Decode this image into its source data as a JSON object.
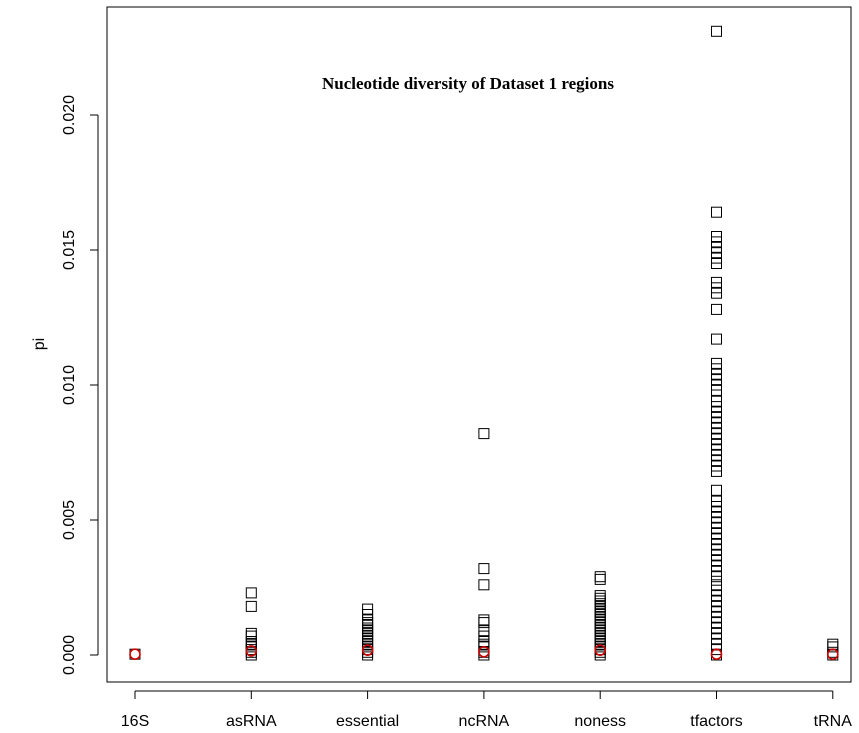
{
  "chart_data": {
    "type": "scatter",
    "title": "Nucleotide diversity of Dataset 1 regions",
    "ylabel": "pi",
    "xlabel": "",
    "categories": [
      "16S",
      "asRNA",
      "essential",
      "ncRNA",
      "noness",
      "tfactors",
      "tRNA"
    ],
    "ylim": [
      -0.0009,
      0.024
    ],
    "yticks": [
      0.0,
      0.005,
      0.01,
      0.015,
      0.02
    ],
    "ytick_labels": [
      "0.000",
      "0.005",
      "0.010",
      "0.015",
      "0.020"
    ],
    "grid": false,
    "series": [
      {
        "marker": "square",
        "color": "#000000",
        "points": {
          "16S": [
            3e-05
          ],
          "asRNA": [
            0.0023,
            0.0018,
            0.0008,
            0.0007,
            0.0005,
            0.0004,
            0.0003,
            0.0002,
            0.0001,
            0.0
          ],
          "essential": [
            0.0017,
            0.0015,
            0.0013,
            0.0012,
            0.0011,
            0.001,
            0.0009,
            0.0008,
            0.0007,
            0.0006,
            0.0005,
            0.0004,
            0.0003,
            0.0002,
            0.0001,
            0.0
          ],
          "ncRNA": [
            0.0082,
            0.0032,
            0.0026,
            0.0013,
            0.0012,
            0.0009,
            0.0007,
            0.0005,
            0.0004,
            0.0003,
            0.0001,
            0.0
          ],
          "noness": [
            0.0029,
            0.0028,
            0.0022,
            0.0021,
            0.002,
            0.0019,
            0.0018,
            0.0017,
            0.0016,
            0.0015,
            0.0014,
            0.0013,
            0.0012,
            0.0011,
            0.001,
            0.0009,
            0.0008,
            0.0007,
            0.0006,
            0.0005,
            0.0004,
            0.0003,
            0.0002,
            0.0001,
            0.0
          ],
          "tfactors": [
            0.0231,
            0.0164,
            0.0155,
            0.0153,
            0.0151,
            0.0149,
            0.0147,
            0.0145,
            0.0138,
            0.0136,
            0.0134,
            0.0128,
            0.0117,
            0.0108,
            0.0106,
            0.0104,
            0.0102,
            0.01,
            0.0098,
            0.0094,
            0.0092,
            0.009,
            0.0088,
            0.0086,
            0.0084,
            0.0082,
            0.008,
            0.0078,
            0.0076,
            0.0074,
            0.0072,
            0.007,
            0.0068,
            0.0061,
            0.0057,
            0.0055,
            0.0053,
            0.0051,
            0.0049,
            0.0047,
            0.0045,
            0.0043,
            0.0041,
            0.0039,
            0.0037,
            0.0035,
            0.0033,
            0.0031,
            0.0029,
            0.0026,
            0.0024,
            0.0022,
            0.002,
            0.0018,
            0.0016,
            0.0014,
            0.0012,
            0.001,
            0.0008,
            0.0006,
            0.0004,
            0.0002,
            0.0
          ],
          "tRNA": [
            0.0004,
            0.0003,
            0.0001,
            0.0
          ]
        }
      },
      {
        "marker": "circle",
        "color": "#cc0000",
        "points": {
          "16S": [
            3e-05
          ],
          "asRNA": [
            0.00015
          ],
          "essential": [
            0.00018
          ],
          "ncRNA": [
            0.00012
          ],
          "noness": [
            0.00018
          ],
          "tfactors": [
            3e-05
          ],
          "tRNA": [
            3e-05
          ]
        }
      }
    ]
  }
}
